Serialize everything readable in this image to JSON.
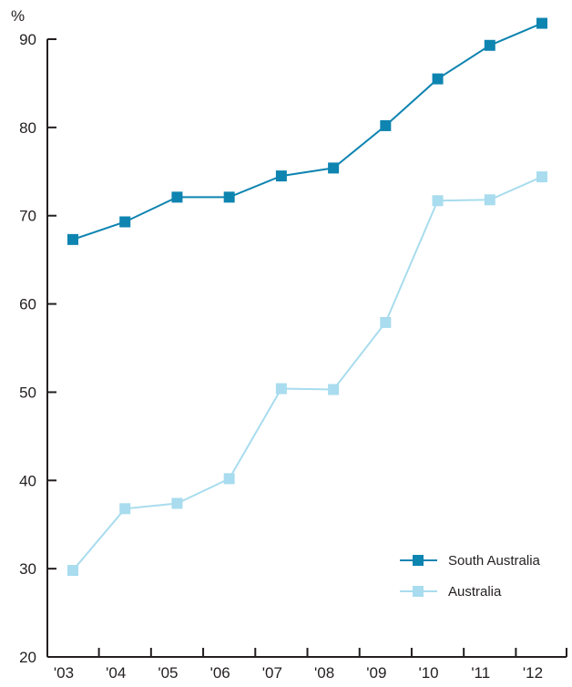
{
  "chart_data": {
    "type": "line",
    "title": "",
    "xlabel": "",
    "ylabel": "%",
    "categories": [
      "'03",
      "'04",
      "'05",
      "'06",
      "'07",
      "'08",
      "'09",
      "'10",
      "'11",
      "'12"
    ],
    "ylim": [
      20,
      92
    ],
    "yticks": [
      20,
      30,
      40,
      50,
      60,
      70,
      80,
      90
    ],
    "grid": false,
    "legend_position": "bottom-right",
    "series": [
      {
        "name": "South Australia",
        "color": "#0e84b0",
        "marker": "square",
        "values": [
          67.3,
          69.3,
          72.1,
          72.1,
          74.5,
          75.4,
          80.2,
          85.5,
          89.3,
          91.8
        ]
      },
      {
        "name": "Australia",
        "color": "#a8dcee",
        "marker": "square",
        "values": [
          29.8,
          36.8,
          37.4,
          40.2,
          50.4,
          50.3,
          57.9,
          71.7,
          71.8,
          74.4
        ]
      }
    ]
  }
}
